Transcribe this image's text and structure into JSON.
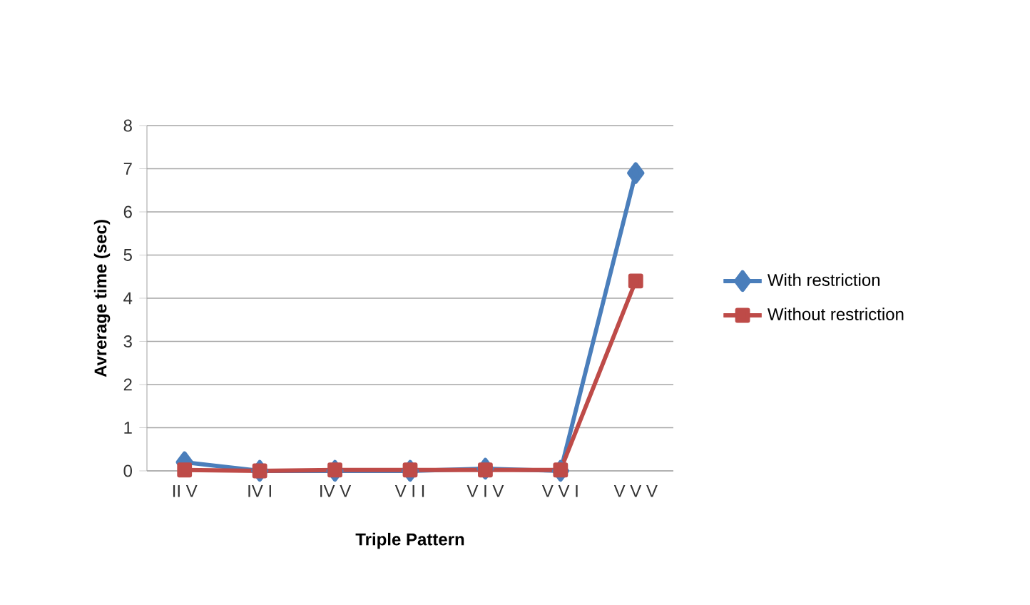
{
  "chart_data": {
    "type": "line",
    "xlabel": "Triple Pattern",
    "ylabel": "Avrerage time (sec)",
    "categories": [
      "II V",
      "IV I",
      "IV V",
      "V I I",
      "V I V",
      "V V I",
      "V V V"
    ],
    "series": [
      {
        "name": "With restriction",
        "color": "#4a7ebb",
        "marker": "diamond",
        "values": [
          0.2,
          0,
          0,
          0,
          0.05,
          0,
          6.9
        ]
      },
      {
        "name": "Without restriction",
        "color": "#be4b48",
        "marker": "square",
        "values": [
          0.02,
          0,
          0.02,
          0.02,
          0.02,
          0.02,
          4.4
        ]
      }
    ],
    "ylim": [
      0,
      8
    ],
    "yticks": [
      0,
      1,
      2,
      3,
      4,
      5,
      6,
      7,
      8
    ],
    "grid": "y",
    "legend": "right",
    "line_style": "solid"
  }
}
